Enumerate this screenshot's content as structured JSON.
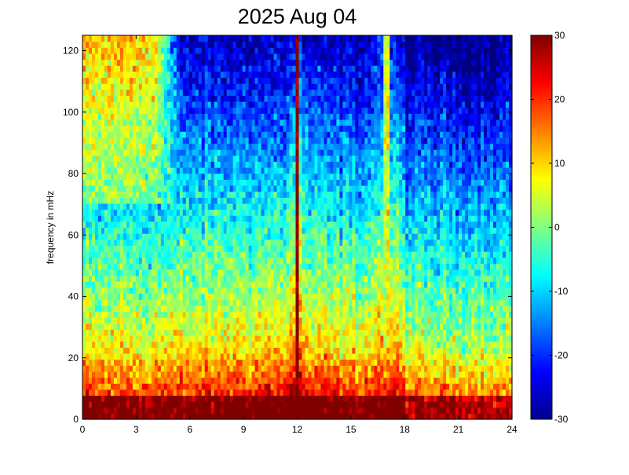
{
  "chart_data": {
    "type": "heatmap",
    "title": "2025 Aug 04",
    "xlabel": "",
    "ylabel": "frequency in mHz",
    "xlim": [
      0,
      24
    ],
    "ylim": [
      0,
      125
    ],
    "x_ticks": [
      "0",
      "3",
      "6",
      "9",
      "12",
      "15",
      "18",
      "21",
      "24"
    ],
    "y_ticks": [
      "0",
      "20",
      "40",
      "60",
      "80",
      "100",
      "120"
    ],
    "colorbar": {
      "range": [
        -30,
        30
      ],
      "ticks": [
        "-30",
        "-20",
        "-10",
        "0",
        "10",
        "20",
        "30"
      ],
      "colormap": "jet"
    },
    "grid": false,
    "features": {
      "vertical_bands": [
        {
          "hour": 12.0,
          "width_hours": 0.22,
          "level": 30
        },
        {
          "hour": 17.0,
          "width_hours": 0.35,
          "level": 4
        }
      ],
      "strong_low_freq_band_mhz": [
        0,
        7
      ],
      "high_freq_high_power_hours": [
        0,
        4
      ]
    }
  }
}
